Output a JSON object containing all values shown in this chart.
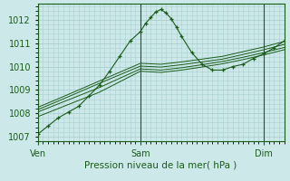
{
  "xlabel": "Pression niveau de la mer( hPa )",
  "bg_color": "#cce8e8",
  "grid_color": "#aacfcf",
  "line_color": "#1a5c1a",
  "ylim": [
    1006.8,
    1012.7
  ],
  "xlim": [
    0,
    48
  ],
  "yticks": [
    1007,
    1008,
    1009,
    1010,
    1011,
    1012
  ],
  "xtick_positions": [
    0,
    20,
    44
  ],
  "xtick_labels": [
    "Ven",
    "Sam",
    "Dim"
  ],
  "vlines": [
    0,
    20,
    44
  ],
  "series": [
    {
      "x": [
        0,
        2,
        4,
        6,
        8,
        10,
        12,
        14,
        16,
        18,
        20,
        21,
        22,
        23,
        24,
        25,
        26,
        27,
        28,
        30,
        32,
        34,
        36,
        38,
        40,
        42,
        44,
        46,
        48
      ],
      "y": [
        1007.1,
        1007.45,
        1007.8,
        1008.05,
        1008.3,
        1008.75,
        1009.2,
        1009.8,
        1010.45,
        1011.1,
        1011.5,
        1011.85,
        1012.1,
        1012.35,
        1012.45,
        1012.3,
        1012.05,
        1011.7,
        1011.3,
        1010.6,
        1010.1,
        1009.85,
        1009.85,
        1010.0,
        1010.1,
        1010.35,
        1010.55,
        1010.8,
        1011.1
      ],
      "marker": true
    },
    {
      "x": [
        0,
        4,
        8,
        12,
        16,
        20,
        24,
        28,
        32,
        36,
        40,
        44,
        48
      ],
      "y": [
        1007.85,
        1008.2,
        1008.55,
        1008.9,
        1009.35,
        1009.8,
        1009.75,
        1009.85,
        1009.98,
        1010.12,
        1010.3,
        1010.5,
        1010.72
      ],
      "marker": false
    },
    {
      "x": [
        0,
        4,
        8,
        12,
        16,
        20,
        24,
        28,
        32,
        36,
        40,
        44,
        48
      ],
      "y": [
        1008.05,
        1008.4,
        1008.75,
        1009.1,
        1009.5,
        1009.9,
        1009.85,
        1009.95,
        1010.08,
        1010.22,
        1010.4,
        1010.6,
        1010.82
      ],
      "marker": false
    },
    {
      "x": [
        0,
        4,
        8,
        12,
        16,
        20,
        24,
        28,
        32,
        36,
        40,
        44,
        48
      ],
      "y": [
        1008.15,
        1008.52,
        1008.9,
        1009.28,
        1009.65,
        1010.02,
        1009.98,
        1010.08,
        1010.2,
        1010.32,
        1010.52,
        1010.72,
        1010.95
      ],
      "marker": false
    },
    {
      "x": [
        0,
        4,
        8,
        12,
        16,
        20,
        24,
        28,
        32,
        36,
        40,
        44,
        48
      ],
      "y": [
        1008.25,
        1008.62,
        1009.0,
        1009.38,
        1009.76,
        1010.14,
        1010.1,
        1010.2,
        1010.32,
        1010.44,
        1010.64,
        1010.84,
        1011.08
      ],
      "marker": false
    }
  ]
}
